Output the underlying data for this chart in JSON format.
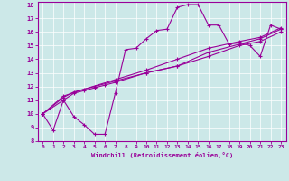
{
  "xlabel": "Windchill (Refroidissement éolien,°C)",
  "bg_color": "#cce8e8",
  "line_color": "#990099",
  "xlim": [
    -0.5,
    23.5
  ],
  "ylim": [
    8,
    18.2
  ],
  "xticks": [
    0,
    1,
    2,
    3,
    4,
    5,
    6,
    7,
    8,
    9,
    10,
    11,
    12,
    13,
    14,
    15,
    16,
    17,
    18,
    19,
    20,
    21,
    22,
    23
  ],
  "yticks": [
    8,
    9,
    10,
    11,
    12,
    13,
    14,
    15,
    16,
    17,
    18
  ],
  "series1": [
    [
      0,
      10.0
    ],
    [
      1,
      8.8
    ],
    [
      2,
      11.0
    ],
    [
      3,
      9.8
    ],
    [
      4,
      9.2
    ],
    [
      5,
      8.5
    ],
    [
      6,
      8.5
    ],
    [
      7,
      11.5
    ],
    [
      8,
      14.7
    ],
    [
      9,
      14.8
    ],
    [
      10,
      15.5
    ],
    [
      11,
      16.1
    ],
    [
      12,
      16.2
    ],
    [
      13,
      17.8
    ],
    [
      14,
      18.0
    ],
    [
      15,
      18.0
    ],
    [
      16,
      16.5
    ],
    [
      17,
      16.5
    ],
    [
      18,
      15.1
    ],
    [
      19,
      15.2
    ],
    [
      20,
      15.0
    ],
    [
      21,
      14.2
    ],
    [
      22,
      16.5
    ],
    [
      23,
      16.2
    ]
  ],
  "series2": [
    [
      0,
      10.0
    ],
    [
      2,
      11.0
    ],
    [
      3,
      11.5
    ],
    [
      4,
      11.7
    ],
    [
      5,
      11.9
    ],
    [
      6,
      12.1
    ],
    [
      7,
      12.3
    ],
    [
      10,
      13.0
    ],
    [
      13,
      13.5
    ],
    [
      16,
      14.2
    ],
    [
      19,
      15.0
    ],
    [
      21,
      15.3
    ],
    [
      23,
      16.0
    ]
  ],
  "series3": [
    [
      0,
      10.0
    ],
    [
      2,
      11.2
    ],
    [
      3,
      11.6
    ],
    [
      5,
      12.0
    ],
    [
      7,
      12.4
    ],
    [
      10,
      13.0
    ],
    [
      13,
      13.5
    ],
    [
      16,
      14.5
    ],
    [
      19,
      15.1
    ],
    [
      21,
      15.5
    ],
    [
      23,
      16.2
    ]
  ],
  "series4": [
    [
      0,
      10.0
    ],
    [
      2,
      11.3
    ],
    [
      4,
      11.8
    ],
    [
      7,
      12.5
    ],
    [
      10,
      13.2
    ],
    [
      13,
      14.0
    ],
    [
      16,
      14.8
    ],
    [
      19,
      15.3
    ],
    [
      21,
      15.6
    ],
    [
      23,
      16.3
    ]
  ]
}
